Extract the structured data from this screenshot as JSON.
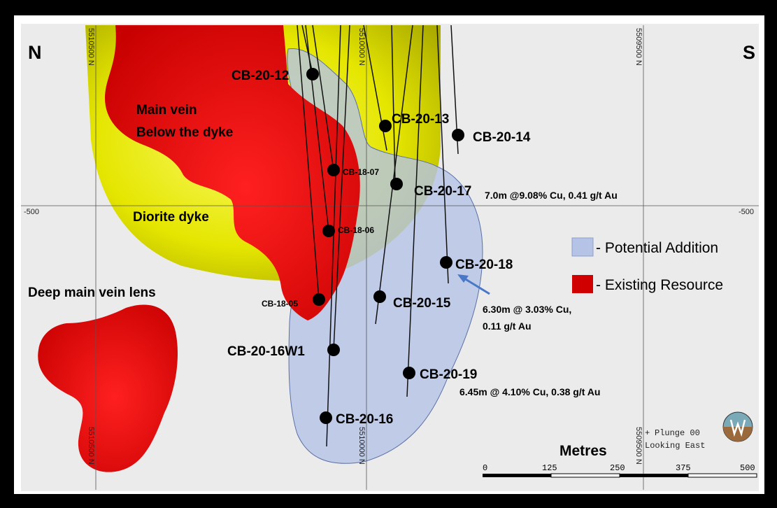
{
  "map": {
    "title_left": "N",
    "title_right": "S",
    "grid": {
      "vertical_labels": [
        "5510500 N",
        "5510000 N",
        "5509500 N"
      ],
      "elevation_left": "-500",
      "elevation_right": "-500",
      "cross_symbol": "+"
    },
    "regions": {
      "main_vein_line1": "Main vein",
      "main_vein_line2": "Below the dyke",
      "diorite_dyke": "Diorite dyke",
      "deep_lens": "Deep main vein lens"
    },
    "drillholes": [
      {
        "id": "CB-20-12"
      },
      {
        "id": "CB-20-13"
      },
      {
        "id": "CB-20-14"
      },
      {
        "id": "CB-18-07"
      },
      {
        "id": "CB-20-17"
      },
      {
        "id": "CB-18-06"
      },
      {
        "id": "CB-20-18"
      },
      {
        "id": "CB-18-05"
      },
      {
        "id": "CB-20-15"
      },
      {
        "id": "CB-20-16W1"
      },
      {
        "id": "CB-20-19"
      },
      {
        "id": "CB-20-16"
      }
    ],
    "intercepts": {
      "cb2017": "7.0m @9.08% Cu, 0.41 g/t Au",
      "cb2018_line1": "6.30m @ 3.03% Cu,",
      "cb2018_line2": "0.11 g/t Au",
      "cb2019": "6.45m @ 4.10% Cu, 0.38 g/t Au"
    },
    "legend": {
      "potential": "- Potential Addition",
      "existing": "- Existing Resource",
      "potential_color": "#b4c3e6",
      "existing_color": "#e00000"
    },
    "plunge": {
      "line1": "Plunge 00",
      "line2": "Looking East"
    },
    "scale": {
      "title": "Metres",
      "ticks": [
        "0",
        "125",
        "250",
        "375",
        "500"
      ]
    },
    "colors": {
      "background": "#ebebeb",
      "frame": "#000000",
      "dyke": "#e5e600",
      "vein": "#e00000",
      "potential": "#b4c3e6"
    }
  }
}
